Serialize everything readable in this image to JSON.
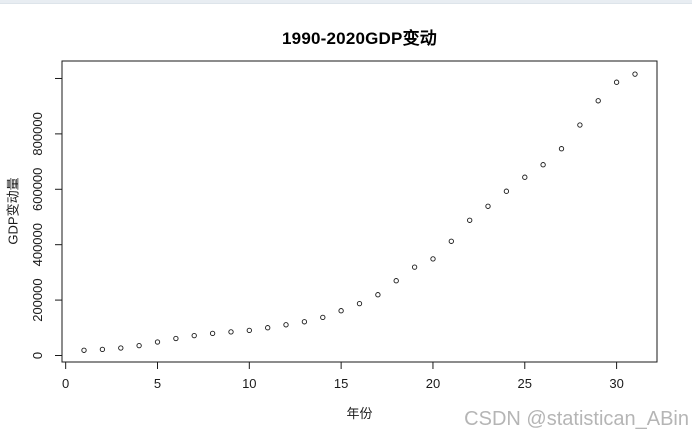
{
  "page": {
    "watermark": "CSDN @statistican_ABin",
    "background_color": "#ffffff",
    "top_strip_color": "#e8edf2",
    "watermark_color": "#b5b5b5"
  },
  "chart_data": {
    "type": "scatter",
    "title": "1990-2020GDP变动",
    "xlabel": "年份",
    "ylabel": "GDP变动量",
    "point_style": "open-circle",
    "point_color": "#1a1a1a",
    "axis_color": "#1a1a1a",
    "grid": false,
    "legend": false,
    "x": [
      1,
      2,
      3,
      4,
      5,
      6,
      7,
      8,
      9,
      10,
      11,
      12,
      13,
      14,
      15,
      16,
      17,
      18,
      19,
      20,
      21,
      22,
      23,
      24,
      25,
      26,
      27,
      28,
      29,
      30,
      31
    ],
    "y": [
      18873,
      22006,
      27195,
      35673,
      48638,
      61340,
      71814,
      79715,
      85196,
      90564,
      100280,
      110863,
      121717,
      137422,
      161840,
      187319,
      219439,
      270092,
      319245,
      348518,
      412119,
      487940,
      538580,
      592963,
      643563,
      688858,
      746395,
      832036,
      919281,
      986515,
      1015986
    ],
    "x_tick_values": [
      0,
      5,
      10,
      15,
      20,
      25,
      30
    ],
    "x_tick_labels": [
      "0",
      "5",
      "10",
      "15",
      "20",
      "25",
      "30"
    ],
    "y_tick_values": [
      0,
      200000,
      400000,
      600000,
      800000,
      1000000
    ],
    "y_tick_labels": [
      "0",
      "200000",
      "400000",
      "600000",
      "800000",
      ""
    ],
    "xlim": [
      -0.2,
      32.2
    ],
    "ylim": [
      -23500,
      1063100
    ]
  }
}
